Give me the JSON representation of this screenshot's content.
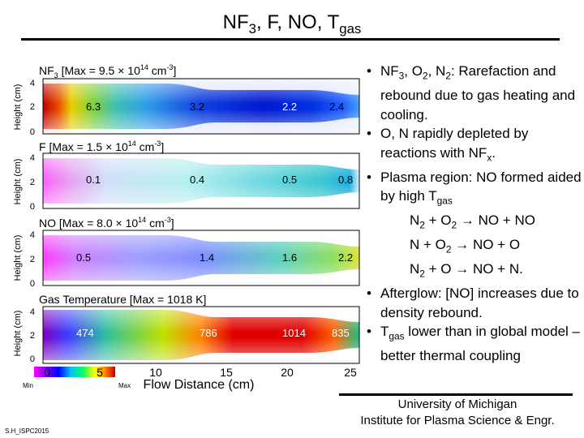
{
  "header": {
    "title_main": "NF",
    "title_sub3": "3",
    "title_rest": ", F, NO, T",
    "title_sub_gas": "gas"
  },
  "panels": [
    {
      "label_pre": "NF",
      "label_sub": "3",
      "label_mid": " [Max = 9.5 × 10",
      "label_exp": "14",
      "label_unit": " cm",
      "label_unit_exp": "-3",
      "label_end": "]",
      "values": [
        "6.3",
        "3.2",
        "2.2",
        "2.4"
      ]
    },
    {
      "label_pre": "F [Max = 1.5 × 10",
      "label_exp": "14",
      "label_unit": " cm",
      "label_unit_exp": "-3",
      "label_end": "]",
      "values": [
        "0.1",
        "0.4",
        "0.5",
        "0.8"
      ]
    },
    {
      "label_pre": "NO [Max = 8.0 × 10",
      "label_exp": "14",
      "label_unit": " cm",
      "label_unit_exp": "-3",
      "label_end": "]",
      "values": [
        "0.5",
        "1.4",
        "1.6",
        "2.2"
      ]
    },
    {
      "label_pre": "Gas Temperature [Max = 1018 K]",
      "values": [
        "474",
        "786",
        "1014",
        "835"
      ]
    }
  ],
  "axes": {
    "ylabel": "Height (cm)",
    "yticks": [
      "4",
      "2",
      "0"
    ],
    "xlabel": "Flow Distance (cm)",
    "xticks": [
      "0",
      "5",
      "10",
      "15",
      "20",
      "25"
    ],
    "colorbar_min": "Min",
    "colorbar_max": "Max"
  },
  "bullets": {
    "b1": {
      "a": "NF",
      "s1": "3",
      "b": ", O",
      "s2": "2",
      "c": ", N",
      "s3": "2",
      "d": ": Rarefaction and rebound due to gas heating and cooling."
    },
    "b2": {
      "a": "O, N rapidly depleted by reactions with NF",
      "s1": "x",
      "b": "."
    },
    "b3": {
      "a": "Plasma region: NO formed aided by high T",
      "s1": "gas"
    },
    "r1": {
      "a": "N",
      "s1": "2",
      "b": " + O",
      "s2": "2",
      "c": " → NO + NO"
    },
    "r2": {
      "a": "N + O",
      "s1": "2",
      "b": " → NO + O"
    },
    "r3": {
      "a": "N",
      "s1": "2",
      "b": " + O → NO + N."
    },
    "b4": {
      "a": "Afterglow: [NO] increases due to density rebound."
    },
    "b5": {
      "a": "T",
      "s1": "gas",
      "b": " lower than in global model – better thermal coupling"
    }
  },
  "footer": {
    "affil_line1": "University of Michigan",
    "affil_line2": "Institute for Plasma Science & Engr.",
    "slide_code": "S.H_ISPC2015"
  }
}
